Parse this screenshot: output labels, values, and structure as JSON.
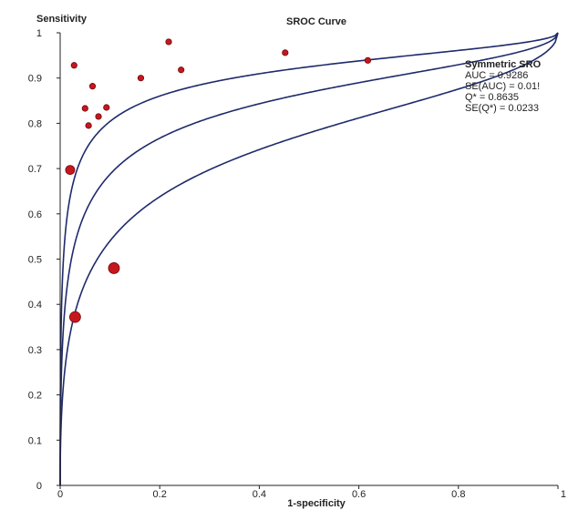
{
  "chart_data": {
    "type": "scatter",
    "title": "SROC Curve",
    "xlabel": "1-specificity",
    "ylabel": "Sensitivity",
    "xlim": [
      0,
      1
    ],
    "ylim": [
      0,
      1
    ],
    "x_ticks": [
      "0",
      "0.2",
      "0.4",
      "0.6",
      "0.8",
      "1"
    ],
    "y_ticks": [
      "0",
      "0.1",
      "0.2",
      "0.3",
      "0.4",
      "0.5",
      "0.6",
      "0.7",
      "0.8",
      "0.9",
      "1"
    ],
    "grid": false,
    "points": [
      {
        "x": 0.02,
        "y": 0.697,
        "size": "medium"
      },
      {
        "x": 0.03,
        "y": 0.372,
        "size": "large"
      },
      {
        "x": 0.108,
        "y": 0.48,
        "size": "large"
      },
      {
        "x": 0.028,
        "y": 0.928,
        "size": "small"
      },
      {
        "x": 0.05,
        "y": 0.833,
        "size": "small"
      },
      {
        "x": 0.057,
        "y": 0.795,
        "size": "small"
      },
      {
        "x": 0.065,
        "y": 0.882,
        "size": "small"
      },
      {
        "x": 0.077,
        "y": 0.815,
        "size": "small"
      },
      {
        "x": 0.093,
        "y": 0.835,
        "size": "small"
      },
      {
        "x": 0.162,
        "y": 0.9,
        "size": "small"
      },
      {
        "x": 0.218,
        "y": 0.98,
        "size": "small"
      },
      {
        "x": 0.243,
        "y": 0.918,
        "size": "small"
      },
      {
        "x": 0.452,
        "y": 0.956,
        "size": "small"
      },
      {
        "x": 0.618,
        "y": 0.939,
        "size": "small"
      }
    ],
    "curves": [
      {
        "dor": 151.6,
        "role": "upper"
      },
      {
        "dor": 43.4,
        "role": "sroc"
      },
      {
        "dor": 12.4,
        "role": "lower"
      }
    ],
    "colors": {
      "curve": "#1f2a6b",
      "point_fill": "#c8161d",
      "point_stroke": "#6e0a0e",
      "axis": "#222222"
    },
    "annotation": {
      "heading": "Symmetric SRO",
      "lines": [
        "AUC = 0.9286",
        "SE(AUC) = 0.01!",
        "Q* = 0.8635",
        "SE(Q*) = 0.0233"
      ]
    }
  }
}
